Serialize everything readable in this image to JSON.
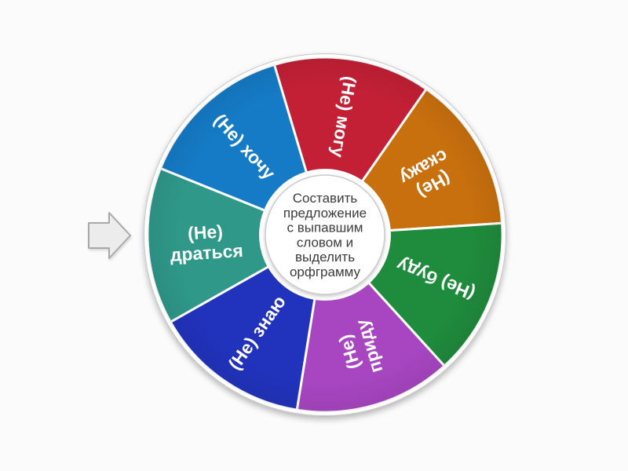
{
  "page": {
    "background_color": "#fbfbfb"
  },
  "pointer": {
    "name": "spin-pointer-arrow",
    "fill_color": "#ececec",
    "border_color": "#a9a9a9"
  },
  "wheel": {
    "rim_color": "#ffffff",
    "rim_edge_color": "#c6c6c6",
    "center_text": "Составить предложение с выпавшим словом и выделить орфграмму",
    "center_lines": [
      "Составить",
      "предложение",
      "с выпавшим",
      "словом и",
      "выделить",
      "орфграмму"
    ],
    "center_text_color": "#3b3b3b",
    "segments": [
      {
        "label": "(Не) могу",
        "lines": [
          "(Не) могу"
        ],
        "color": "#c32035"
      },
      {
        "label": "(Не) скажу",
        "lines": [
          "(Не)",
          "скажу"
        ],
        "color": "#c9700e"
      },
      {
        "label": "(Не) буду",
        "lines": [
          "(Не) буду"
        ],
        "color": "#1f8b3c"
      },
      {
        "label": "(Не) приду",
        "lines": [
          "(Не)",
          "приду"
        ],
        "color": "#a846c2"
      },
      {
        "label": "(Не) знаю",
        "lines": [
          "(Не) знаю"
        ],
        "color": "#2133bd"
      },
      {
        "label": "(Не) драться",
        "lines": [
          "(Не)",
          "драться"
        ],
        "color": "#2f9889"
      },
      {
        "label": "(Не) хочу",
        "lines": [
          "(Не) хочу"
        ],
        "color": "#157bc6"
      }
    ]
  }
}
